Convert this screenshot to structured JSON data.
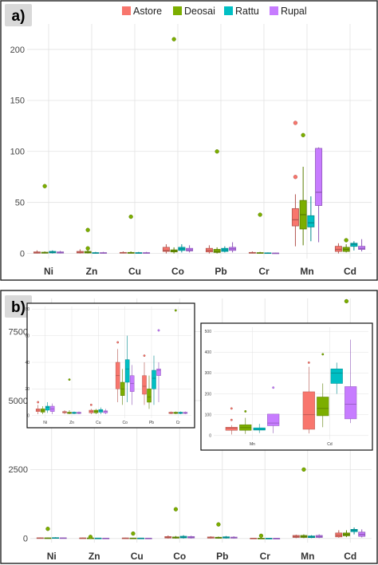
{
  "legend": [
    {
      "name": "Astore",
      "color": "#F8766D"
    },
    {
      "name": "Deosai",
      "color": "#7CAE00"
    },
    {
      "name": "Rattu",
      "color": "#00BFC4"
    },
    {
      "name": "Rupal",
      "color": "#C77CFF"
    }
  ],
  "chart_data": [
    {
      "panel_label": "a)",
      "type": "box",
      "categories": [
        "Ni",
        "Zn",
        "Cu",
        "Co",
        "Pb",
        "Cr",
        "Mn",
        "Cd"
      ],
      "yticks": [
        0,
        50,
        100,
        150,
        200
      ],
      "ylim": [
        -5,
        225
      ],
      "series": [
        {
          "name": "Astore",
          "boxes": [
            [
              0,
              0.3,
              0.8,
              1.5,
              3
            ],
            [
              0,
              0.5,
              1,
              2,
              4
            ],
            [
              0,
              0.3,
              0.6,
              1,
              2
            ],
            [
              0,
              2,
              3,
              6,
              9
            ],
            [
              0,
              1.5,
              3,
              5,
              8
            ],
            [
              0,
              0.3,
              0.5,
              1,
              2
            ],
            [
              7,
              27,
              33,
              44,
              58
            ],
            [
              0,
              2,
              4,
              7,
              10
            ]
          ],
          "outliers": [
            [],
            [],
            [],
            [],
            [],
            [],
            [
              75,
              128
            ],
            []
          ]
        },
        {
          "name": "Deosai",
          "boxes": [
            [
              0,
              0.3,
              0.6,
              1.2,
              2
            ],
            [
              0,
              0.5,
              1,
              2,
              4
            ],
            [
              0,
              0.2,
              0.5,
              1,
              2
            ],
            [
              0,
              1.5,
              2.5,
              3.5,
              6
            ],
            [
              0,
              1,
              2,
              4,
              6
            ],
            [
              0,
              0.2,
              0.4,
              0.8,
              1.5
            ],
            [
              8,
              24,
              38,
              52,
              85
            ],
            [
              1,
              2,
              4,
              6,
              9
            ]
          ],
          "outliers": [
            [
              66
            ],
            [
              23,
              5
            ],
            [
              36
            ],
            [
              210
            ],
            [
              100
            ],
            [
              38
            ],
            [
              116
            ],
            [
              13
            ]
          ]
        },
        {
          "name": "Rattu",
          "boxes": [
            [
              0,
              0.6,
              1.2,
              2,
              3
            ],
            [
              0,
              0.2,
              0.4,
              0.8,
              1.5
            ],
            [
              0,
              0.2,
              0.4,
              0.8,
              1.5
            ],
            [
              1,
              3,
              4.5,
              6,
              9
            ],
            [
              1,
              2,
              3.5,
              5,
              7
            ],
            [
              0,
              0.2,
              0.3,
              0.6,
              1
            ],
            [
              12,
              26,
              30,
              37,
              56
            ],
            [
              3,
              7,
              9,
              10,
              12
            ]
          ],
          "outliers": [
            [],
            [],
            [],
            [],
            [],
            [],
            [],
            []
          ]
        },
        {
          "name": "Rupal",
          "boxes": [
            [
              0,
              0.4,
              0.8,
              1.5,
              2.5
            ],
            [
              0,
              0.2,
              0.4,
              0.8,
              1.5
            ],
            [
              0,
              0.2,
              0.4,
              0.8,
              1.5
            ],
            [
              1,
              2.5,
              3.5,
              5,
              8
            ],
            [
              1,
              3,
              4.5,
              6,
              11
            ],
            [
              0,
              0.1,
              0.2,
              0.4,
              0.8
            ],
            [
              11,
              47,
              60,
              103,
              104
            ],
            [
              2,
              4,
              5,
              7,
              14
            ]
          ],
          "outliers": [
            [],
            [],
            [],
            [],
            [],
            [],
            [],
            []
          ]
        }
      ]
    },
    {
      "panel_label": "b)",
      "type": "box",
      "categories": [
        "Ni",
        "Zn",
        "Cu",
        "Co",
        "Pb",
        "Cr",
        "Mn",
        "Cd"
      ],
      "yticks": [
        0,
        2500,
        5000,
        7500
      ],
      "ylim": [
        -150,
        8700
      ],
      "series": [
        {
          "name": "Astore",
          "boxes": [
            [
              0,
              8,
              15,
              25,
              40
            ],
            [
              0,
              8,
              12,
              20,
              35
            ],
            [
              0,
              6,
              10,
              18,
              28
            ],
            [
              0,
              20,
              40,
              70,
              110
            ],
            [
              0,
              15,
              30,
              55,
              80
            ],
            [
              0,
              3,
              6,
              12,
              20
            ],
            [
              15,
              40,
              70,
              110,
              140
            ],
            [
              30,
              60,
              120,
              200,
              300
            ]
          ],
          "outliers": [
            [],
            [],
            [],
            [],
            [],
            [],
            [],
            []
          ]
        },
        {
          "name": "Deosai",
          "boxes": [
            [
              0,
              6,
              12,
              22,
              35
            ],
            [
              0,
              5,
              10,
              18,
              30
            ],
            [
              0,
              5,
              8,
              15,
              25
            ],
            [
              0,
              15,
              30,
              55,
              90
            ],
            [
              0,
              12,
              25,
              45,
              70
            ],
            [
              0,
              3,
              5,
              10,
              16
            ],
            [
              15,
              40,
              70,
              110,
              150
            ],
            [
              50,
              100,
              150,
              200,
              300
            ]
          ],
          "outliers": [
            [
              350
            ],
            [
              60
            ],
            [
              180
            ],
            [
              1060
            ],
            [
              510
            ],
            [
              100
            ],
            [
              2500
            ],
            [
              8600
            ]
          ]
        },
        {
          "name": "Rattu",
          "boxes": [
            [
              0,
              10,
              18,
              30,
              45
            ],
            [
              0,
              4,
              8,
              14,
              22
            ],
            [
              0,
              4,
              8,
              14,
              22
            ],
            [
              0,
              25,
              45,
              80,
              120
            ],
            [
              0,
              18,
              35,
              60,
              90
            ],
            [
              0,
              2,
              4,
              8,
              12
            ],
            [
              15,
              35,
              60,
              90,
              120
            ],
            [
              150,
              250,
              300,
              330,
              400
            ]
          ],
          "outliers": [
            [],
            [],
            [],
            [],
            [],
            [],
            [],
            []
          ]
        },
        {
          "name": "Rupal",
          "boxes": [
            [
              0,
              8,
              14,
              24,
              38
            ],
            [
              0,
              4,
              7,
              12,
              20
            ],
            [
              0,
              4,
              7,
              12,
              20
            ],
            [
              0,
              22,
              40,
              70,
              100
            ],
            [
              0,
              15,
              30,
              50,
              80
            ],
            [
              0,
              2,
              3,
              6,
              10
            ],
            [
              15,
              40,
              70,
              110,
              150
            ],
            [
              40,
              80,
              150,
              230,
              330
            ]
          ],
          "outliers": [
            [],
            [],
            [],
            [],
            [],
            [],
            [],
            []
          ]
        }
      ],
      "insets": [
        {
          "name": "inset-trace",
          "categories": [
            "Ni",
            "Zn",
            "Cu",
            "Co",
            "Pb",
            "Cr"
          ],
          "yticks": [
            0,
            20,
            40,
            60,
            80
          ],
          "ylim": [
            -2,
            82
          ],
          "series": [
            {
              "name": "Astore",
              "boxes": [
                [
                  1,
                  3,
                  4,
                  5,
                  8
                ],
                [
                  1,
                  2,
                  2.5,
                  3,
                  4
                ],
                [
                  1,
                  2,
                  3,
                  4,
                  5
                ],
                [
                  10,
                  20,
                  30,
                  40,
                  50
                ],
                [
                  8,
                  16,
                  22,
                  30,
                  40
                ],
                [
                  1,
                  1.5,
                  2,
                  2.5,
                  3
                ]
              ],
              "outliers": [
                [
                  10
                ],
                [],
                [
                  8
                ],
                [
                  55
                ],
                [
                  45
                ],
                []
              ]
            },
            {
              "name": "Deosai",
              "boxes": [
                [
                  1,
                  2.5,
                  3.5,
                  5,
                  7
                ],
                [
                  1,
                  1.5,
                  2,
                  2.5,
                  4
                ],
                [
                  1,
                  2,
                  3,
                  4,
                  5
                ],
                [
                  8,
                  15,
                  20,
                  25,
                  35
                ],
                [
                  5,
                  10,
                  14,
                  20,
                  30
                ],
                [
                  1,
                  1.5,
                  2,
                  2.5,
                  3
                ]
              ],
              "outliers": [
                [],
                [
                  27
                ],
                [],
                [],
                [],
                [
                  79
                ]
              ]
            },
            {
              "name": "Rattu",
              "boxes": [
                [
                  2,
                  4,
                  6,
                  7,
                  10
                ],
                [
                  1,
                  1.5,
                  2,
                  2.5,
                  3
                ],
                [
                  1,
                  2.5,
                  3.5,
                  4.5,
                  6
                ],
                [
                  10,
                  25,
                  35,
                  42,
                  60
                ],
                [
                  8,
                  20,
                  28,
                  34,
                  45
                ],
                [
                  1,
                  1.5,
                  2,
                  2.5,
                  3
                ]
              ],
              "outliers": [
                [],
                [],
                [],
                [],
                [],
                []
              ]
            },
            {
              "name": "Rupal",
              "boxes": [
                [
                  1,
                  3,
                  5,
                  7,
                  9
                ],
                [
                  1,
                  1.5,
                  2,
                  2.5,
                  3
                ],
                [
                  1,
                  2,
                  3,
                  3.5,
                  5
                ],
                [
                  8,
                  18,
                  24,
                  30,
                  38
                ],
                [
                  10,
                  30,
                  34,
                  35,
                  40
                ],
                [
                  1,
                  1.5,
                  2,
                  2.5,
                  3
                ]
              ],
              "outliers": [
                [],
                [],
                [],
                [],
                [
                  64
                ],
                []
              ]
            }
          ]
        },
        {
          "name": "inset-mn-cd",
          "categories": [
            "Mn",
            "Cd"
          ],
          "yticks": [
            0,
            100,
            200,
            300,
            400,
            500
          ],
          "ylim": [
            -20,
            520
          ],
          "series": [
            {
              "name": "Astore",
              "boxes": [
                [
                  5,
                  25,
                  35,
                  40,
                  50
                ],
                [
                  10,
                  30,
                  100,
                  210,
                  330
                ]
              ],
              "outliers": [
                [
                  130,
                  75
                ],
                [
                  350
                ]
              ]
            },
            {
              "name": "Deosai",
              "boxes": [
                [
                  8,
                  25,
                  38,
                  52,
                  85
                ],
                [
                  40,
                  95,
                  130,
                  185,
                  250
                ]
              ],
              "outliers": [
                [
                  116
                ],
                [
                  390
                ]
              ]
            },
            {
              "name": "Rattu",
              "boxes": [
                [
                  12,
                  26,
                  30,
                  37,
                  56
                ],
                [
                  200,
                  250,
                  300,
                  320,
                  350
                ]
              ],
              "outliers": [
                [],
                []
              ]
            },
            {
              "name": "Rupal",
              "boxes": [
                [
                  11,
                  47,
                  60,
                  103,
                  104
                ],
                [
                  60,
                  80,
                  150,
                  235,
                  460
                ]
              ],
              "outliers": [
                [
                  230
                ],
                []
              ]
            }
          ]
        }
      ]
    }
  ]
}
